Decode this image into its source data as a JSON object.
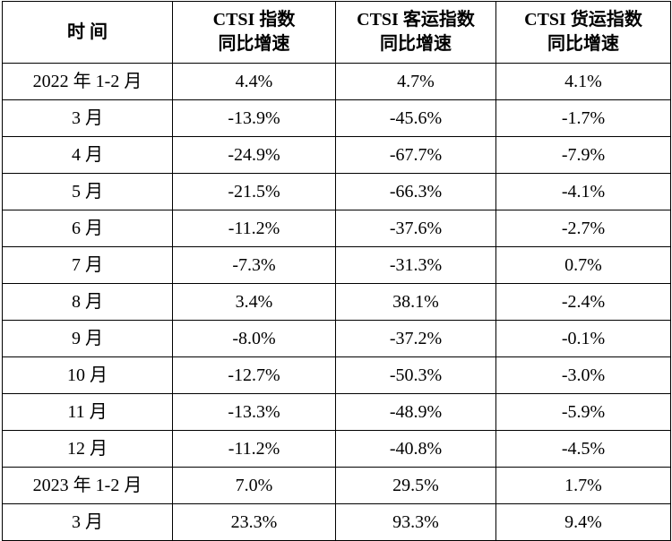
{
  "table": {
    "headers": [
      {
        "line1": "时 间",
        "line2": ""
      },
      {
        "line1": "CTSI 指数",
        "line2": "同比增速"
      },
      {
        "line1": "CTSI 客运指数",
        "line2": "同比增速"
      },
      {
        "line1": "CTSI 货运指数",
        "line2": "同比增速"
      }
    ],
    "rows": [
      [
        "2022 年 1-2 月",
        "4.4%",
        "4.7%",
        "4.1%"
      ],
      [
        "3 月",
        "-13.9%",
        "-45.6%",
        "-1.7%"
      ],
      [
        "4 月",
        "-24.9%",
        "-67.7%",
        "-7.9%"
      ],
      [
        "5 月",
        "-21.5%",
        "-66.3%",
        "-4.1%"
      ],
      [
        "6 月",
        "-11.2%",
        "-37.6%",
        "-2.7%"
      ],
      [
        "7 月",
        "-7.3%",
        "-31.3%",
        "0.7%"
      ],
      [
        "8 月",
        "3.4%",
        "38.1%",
        "-2.4%"
      ],
      [
        "9 月",
        "-8.0%",
        "-37.2%",
        "-0.1%"
      ],
      [
        "10 月",
        "-12.7%",
        "-50.3%",
        "-3.0%"
      ],
      [
        "11 月",
        "-13.3%",
        "-48.9%",
        "-5.9%"
      ],
      [
        "12 月",
        "-11.2%",
        "-40.8%",
        "-4.5%"
      ],
      [
        "2023 年 1-2 月",
        "7.0%",
        "29.5%",
        "1.7%"
      ],
      [
        "3 月",
        "23.3%",
        "93.3%",
        "9.4%"
      ]
    ]
  }
}
